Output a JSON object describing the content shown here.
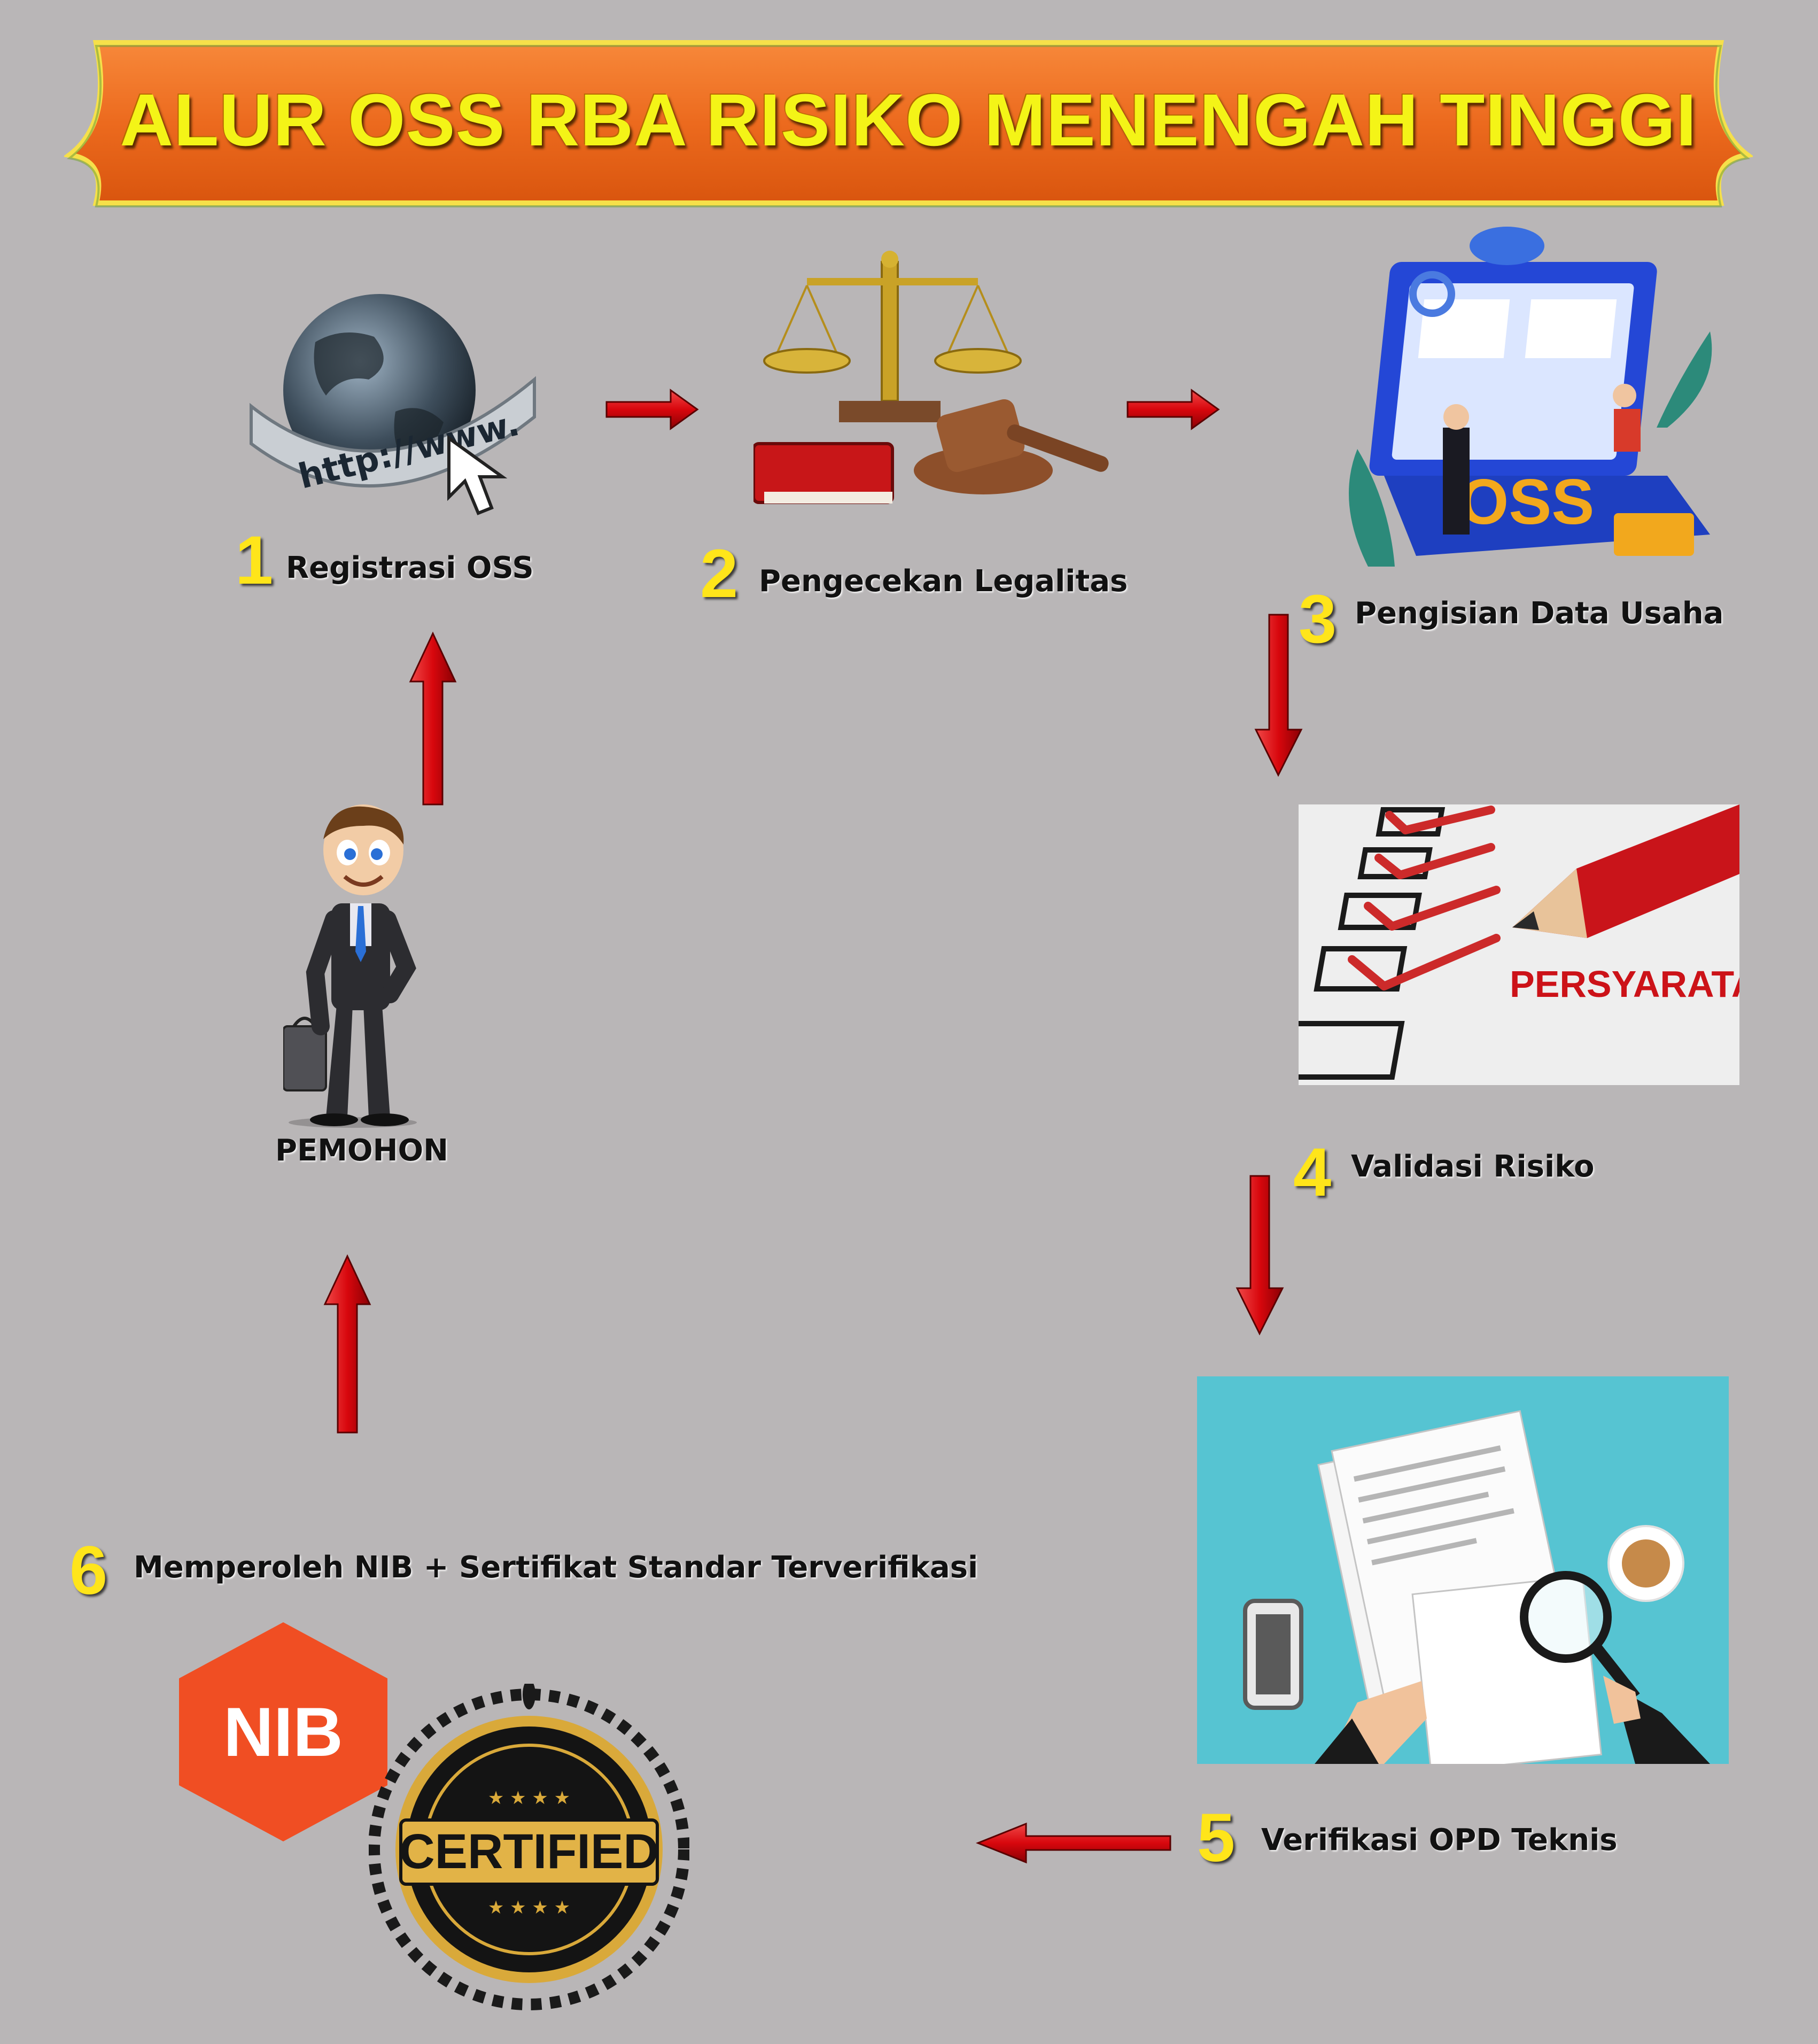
{
  "title": "ALUR  OSS RBA RISIKO MENENGAH TINGGI",
  "steps": [
    {
      "num": "1",
      "label": "Registrasi OSS"
    },
    {
      "num": "2",
      "label": "Pengecekan Legalitas"
    },
    {
      "num": "3",
      "label": "Pengisian Data Usaha"
    },
    {
      "num": "4",
      "label": "Validasi Risiko"
    },
    {
      "num": "5",
      "label": "Verifikasi OPD Teknis"
    },
    {
      "num": "6",
      "label": "Memperoleh NIB + Sertifikat Standar Terverifikasi"
    }
  ],
  "applicant_label": "PEMOHON",
  "globe_url_text": "http://www.",
  "oss_logo_text": "OSS",
  "requirements_text": "PERSYARATAN",
  "nib_text": "NIB",
  "certified_text": "CERTIFIED",
  "colors": {
    "background": "#b9b6b7",
    "banner": "#ec6a1e",
    "title": "#f4f417",
    "number": "#ffe51a",
    "arrow": "#d8070d",
    "nib": "#f04e23",
    "verification_bg": "#56c4d2"
  }
}
